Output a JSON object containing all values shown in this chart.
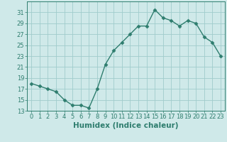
{
  "x": [
    0,
    1,
    2,
    3,
    4,
    5,
    6,
    7,
    8,
    9,
    10,
    11,
    12,
    13,
    14,
    15,
    16,
    17,
    18,
    19,
    20,
    21,
    22,
    23
  ],
  "y": [
    18,
    17.5,
    17,
    16.5,
    15,
    14,
    14,
    13.5,
    17,
    21.5,
    24,
    25.5,
    27,
    28.5,
    28.5,
    31.5,
    30,
    29.5,
    28.5,
    29.5,
    29,
    26.5,
    25.5,
    23
  ],
  "line_color": "#2e7d6e",
  "marker": "D",
  "marker_size": 2.5,
  "bg_color": "#cfe9e9",
  "grid_color": "#a0cccc",
  "xlabel": "Humidex (Indice chaleur)",
  "ylim": [
    13,
    33
  ],
  "xlim": [
    -0.5,
    23.5
  ],
  "yticks": [
    13,
    15,
    17,
    19,
    21,
    23,
    25,
    27,
    29,
    31
  ],
  "xticks": [
    0,
    1,
    2,
    3,
    4,
    5,
    6,
    7,
    8,
    9,
    10,
    11,
    12,
    13,
    14,
    15,
    16,
    17,
    18,
    19,
    20,
    21,
    22,
    23
  ],
  "tick_color": "#2e7d6e",
  "xlabel_fontsize": 7.5,
  "tick_fontsize": 6,
  "line_width": 1.0
}
